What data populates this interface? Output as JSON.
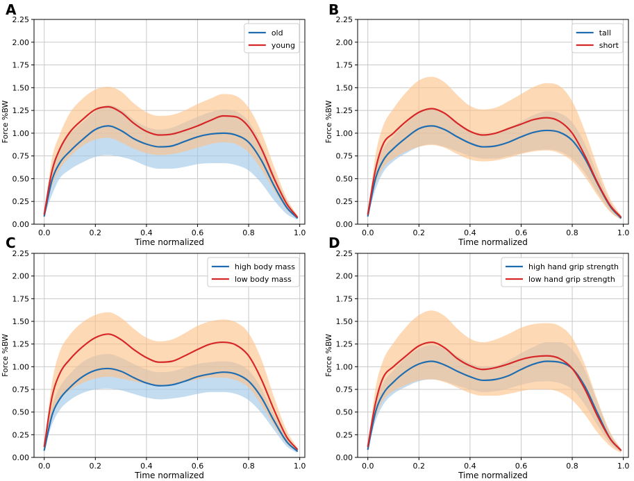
{
  "figure": {
    "panels": [
      "A",
      "B",
      "C",
      "D"
    ]
  },
  "colors": {
    "blue_line": "#1f6db0",
    "red_line": "#d62728",
    "blue_band": "#9fc6e7",
    "orange_band": "#fdbf86",
    "grid": "#c8c8c8"
  },
  "chart_data": [
    {
      "panel": "A",
      "type": "line",
      "title": "",
      "xlabel": "Time normalized",
      "ylabel": "Force %BW",
      "xlim": [
        -0.04,
        1.02
      ],
      "ylim": [
        0,
        2.25
      ],
      "xticks": [
        0.0,
        0.2,
        0.4,
        0.6,
        0.8,
        1.0
      ],
      "xtick_labels": [
        "0.0",
        "0.2",
        "0.4",
        "0.6",
        "0.8",
        "1.0"
      ],
      "yticks": [
        0,
        0.25,
        0.5,
        0.75,
        1.0,
        1.25,
        1.5,
        1.75,
        2.0,
        2.25
      ],
      "ytick_labels": [
        "0.00",
        "0.25",
        "0.50",
        "0.75",
        "1.00",
        "1.25",
        "1.50",
        "1.75",
        "2.00",
        "2.25"
      ],
      "grid": true,
      "legend_position": "top-right",
      "x": [
        0.0,
        0.03,
        0.06,
        0.1,
        0.15,
        0.2,
        0.25,
        0.3,
        0.35,
        0.4,
        0.45,
        0.5,
        0.55,
        0.6,
        0.65,
        0.7,
        0.75,
        0.8,
        0.85,
        0.9,
        0.95,
        0.99
      ],
      "series": [
        {
          "name": "old",
          "color": "blue",
          "values": [
            0.09,
            0.48,
            0.67,
            0.8,
            0.93,
            1.04,
            1.08,
            1.03,
            0.94,
            0.88,
            0.85,
            0.86,
            0.91,
            0.96,
            0.99,
            1.0,
            0.98,
            0.9,
            0.7,
            0.42,
            0.18,
            0.07
          ],
          "lower": [
            0.09,
            0.32,
            0.5,
            0.6,
            0.68,
            0.74,
            0.76,
            0.74,
            0.7,
            0.64,
            0.61,
            0.61,
            0.63,
            0.66,
            0.67,
            0.67,
            0.65,
            0.59,
            0.45,
            0.26,
            0.11,
            0.05
          ],
          "upper": [
            0.09,
            0.62,
            0.83,
            0.99,
            1.12,
            1.24,
            1.31,
            1.26,
            1.15,
            1.07,
            1.04,
            1.06,
            1.12,
            1.18,
            1.23,
            1.26,
            1.24,
            1.13,
            0.88,
            0.55,
            0.26,
            0.09
          ]
        },
        {
          "name": "young",
          "color": "red",
          "values": [
            0.11,
            0.58,
            0.82,
            1.01,
            1.15,
            1.26,
            1.29,
            1.23,
            1.11,
            1.02,
            0.98,
            0.99,
            1.03,
            1.08,
            1.14,
            1.19,
            1.18,
            1.07,
            0.83,
            0.5,
            0.22,
            0.08
          ],
          "lower": [
            0.11,
            0.42,
            0.6,
            0.74,
            0.86,
            0.93,
            0.95,
            0.9,
            0.83,
            0.78,
            0.76,
            0.77,
            0.8,
            0.84,
            0.88,
            0.9,
            0.88,
            0.79,
            0.6,
            0.37,
            0.16,
            0.06
          ],
          "upper": [
            0.11,
            0.72,
            0.98,
            1.22,
            1.38,
            1.48,
            1.51,
            1.46,
            1.33,
            1.23,
            1.19,
            1.2,
            1.25,
            1.32,
            1.38,
            1.43,
            1.41,
            1.28,
            1.01,
            0.63,
            0.28,
            0.1
          ]
        }
      ]
    },
    {
      "panel": "B",
      "type": "line",
      "title": "",
      "xlabel": "Time normalized",
      "ylabel": "Force %BW",
      "xlim": [
        -0.04,
        1.02
      ],
      "ylim": [
        0,
        2.25
      ],
      "xticks": [
        0.0,
        0.2,
        0.4,
        0.6,
        0.8,
        1.0
      ],
      "xtick_labels": [
        "0.0",
        "0.2",
        "0.4",
        "0.6",
        "0.8",
        "1.0"
      ],
      "yticks": [
        0,
        0.25,
        0.5,
        0.75,
        1.0,
        1.25,
        1.5,
        1.75,
        2.0,
        2.25
      ],
      "ytick_labels": [
        "0.00",
        "0.25",
        "0.50",
        "0.75",
        "1.00",
        "1.25",
        "1.50",
        "1.75",
        "2.00",
        "2.25"
      ],
      "grid": true,
      "legend_position": "top-right",
      "x": [
        0.0,
        0.03,
        0.06,
        0.1,
        0.15,
        0.2,
        0.25,
        0.3,
        0.35,
        0.4,
        0.45,
        0.5,
        0.55,
        0.6,
        0.65,
        0.7,
        0.75,
        0.8,
        0.85,
        0.9,
        0.95,
        0.99
      ],
      "series": [
        {
          "name": "tall",
          "color": "blue",
          "values": [
            0.09,
            0.5,
            0.7,
            0.83,
            0.95,
            1.05,
            1.08,
            1.04,
            0.96,
            0.89,
            0.85,
            0.86,
            0.9,
            0.96,
            1.01,
            1.03,
            1.01,
            0.92,
            0.72,
            0.44,
            0.19,
            0.07
          ],
          "lower": [
            0.09,
            0.38,
            0.57,
            0.69,
            0.78,
            0.85,
            0.88,
            0.85,
            0.8,
            0.75,
            0.72,
            0.72,
            0.75,
            0.78,
            0.81,
            0.82,
            0.8,
            0.72,
            0.56,
            0.34,
            0.14,
            0.05
          ],
          "upper": [
            0.09,
            0.62,
            0.83,
            0.97,
            1.11,
            1.23,
            1.27,
            1.22,
            1.12,
            1.03,
            0.98,
            0.99,
            1.05,
            1.13,
            1.2,
            1.24,
            1.22,
            1.12,
            0.88,
            0.54,
            0.24,
            0.09
          ]
        },
        {
          "name": "short",
          "color": "red",
          "values": [
            0.11,
            0.6,
            0.88,
            1.0,
            1.13,
            1.23,
            1.27,
            1.22,
            1.11,
            1.02,
            0.98,
            1.0,
            1.05,
            1.1,
            1.15,
            1.17,
            1.13,
            1.0,
            0.75,
            0.45,
            0.2,
            0.08
          ],
          "lower": [
            0.11,
            0.44,
            0.62,
            0.72,
            0.8,
            0.85,
            0.87,
            0.84,
            0.77,
            0.71,
            0.69,
            0.7,
            0.73,
            0.77,
            0.8,
            0.81,
            0.78,
            0.69,
            0.52,
            0.31,
            0.13,
            0.05
          ],
          "upper": [
            0.11,
            0.76,
            1.08,
            1.27,
            1.45,
            1.58,
            1.62,
            1.56,
            1.42,
            1.3,
            1.26,
            1.28,
            1.35,
            1.43,
            1.51,
            1.55,
            1.52,
            1.35,
            1.02,
            0.62,
            0.27,
            0.1
          ]
        }
      ]
    },
    {
      "panel": "C",
      "type": "line",
      "title": "",
      "xlabel": "Time normalized",
      "ylabel": "Force %BW",
      "xlim": [
        -0.04,
        1.02
      ],
      "ylim": [
        0,
        2.25
      ],
      "xticks": [
        0.0,
        0.2,
        0.4,
        0.6,
        0.8,
        1.0
      ],
      "xtick_labels": [
        "0.0",
        "0.2",
        "0.4",
        "0.6",
        "0.8",
        "1.0"
      ],
      "yticks": [
        0,
        0.25,
        0.5,
        0.75,
        1.0,
        1.25,
        1.5,
        1.75,
        2.0,
        2.25
      ],
      "ytick_labels": [
        "0.00",
        "0.25",
        "0.50",
        "0.75",
        "1.00",
        "1.25",
        "1.50",
        "1.75",
        "2.00",
        "2.25"
      ],
      "grid": true,
      "legend_position": "top-right",
      "x": [
        0.0,
        0.03,
        0.06,
        0.1,
        0.15,
        0.2,
        0.25,
        0.3,
        0.35,
        0.4,
        0.45,
        0.5,
        0.55,
        0.6,
        0.65,
        0.7,
        0.75,
        0.8,
        0.85,
        0.9,
        0.95,
        0.99
      ],
      "series": [
        {
          "name": "high body mass",
          "color": "blue",
          "values": [
            0.08,
            0.46,
            0.64,
            0.77,
            0.89,
            0.96,
            0.98,
            0.95,
            0.88,
            0.82,
            0.79,
            0.8,
            0.84,
            0.89,
            0.92,
            0.94,
            0.92,
            0.84,
            0.66,
            0.4,
            0.17,
            0.07
          ],
          "lower": [
            0.08,
            0.36,
            0.52,
            0.63,
            0.71,
            0.75,
            0.76,
            0.74,
            0.7,
            0.66,
            0.64,
            0.65,
            0.67,
            0.7,
            0.72,
            0.72,
            0.7,
            0.63,
            0.49,
            0.3,
            0.12,
            0.05
          ],
          "upper": [
            0.08,
            0.56,
            0.77,
            0.92,
            1.05,
            1.12,
            1.14,
            1.1,
            1.03,
            0.97,
            0.94,
            0.95,
            0.99,
            1.03,
            1.05,
            1.06,
            1.04,
            0.96,
            0.76,
            0.47,
            0.21,
            0.08
          ]
        },
        {
          "name": "low body mass",
          "color": "red",
          "values": [
            0.12,
            0.66,
            0.92,
            1.08,
            1.22,
            1.32,
            1.36,
            1.3,
            1.19,
            1.1,
            1.05,
            1.06,
            1.12,
            1.19,
            1.25,
            1.27,
            1.24,
            1.12,
            0.86,
            0.52,
            0.22,
            0.09
          ],
          "lower": [
            0.12,
            0.48,
            0.63,
            0.74,
            0.82,
            0.87,
            0.89,
            0.87,
            0.84,
            0.81,
            0.79,
            0.8,
            0.83,
            0.86,
            0.88,
            0.88,
            0.85,
            0.77,
            0.58,
            0.35,
            0.15,
            0.06
          ],
          "upper": [
            0.12,
            0.82,
            1.16,
            1.35,
            1.49,
            1.57,
            1.6,
            1.54,
            1.42,
            1.32,
            1.28,
            1.3,
            1.37,
            1.45,
            1.5,
            1.52,
            1.49,
            1.37,
            1.08,
            0.66,
            0.29,
            0.11
          ]
        }
      ]
    },
    {
      "panel": "D",
      "type": "line",
      "title": "",
      "xlabel": "Time normalized",
      "ylabel": "Force %BW",
      "xlim": [
        -0.04,
        1.02
      ],
      "ylim": [
        0,
        2.25
      ],
      "xticks": [
        0.0,
        0.2,
        0.4,
        0.6,
        0.8,
        1.0
      ],
      "xtick_labels": [
        "0.0",
        "0.2",
        "0.4",
        "0.6",
        "0.8",
        "1.0"
      ],
      "yticks": [
        0,
        0.25,
        0.5,
        0.75,
        1.0,
        1.25,
        1.5,
        1.75,
        2.0,
        2.25
      ],
      "ytick_labels": [
        "0.00",
        "0.25",
        "0.50",
        "0.75",
        "1.00",
        "1.25",
        "1.50",
        "1.75",
        "2.00",
        "2.25"
      ],
      "grid": true,
      "legend_position": "top-right",
      "x": [
        0.0,
        0.03,
        0.06,
        0.1,
        0.15,
        0.2,
        0.25,
        0.3,
        0.35,
        0.4,
        0.45,
        0.5,
        0.55,
        0.6,
        0.65,
        0.7,
        0.75,
        0.8,
        0.85,
        0.9,
        0.95,
        0.99
      ],
      "series": [
        {
          "name": "high hand grip strength",
          "color": "blue",
          "values": [
            0.09,
            0.5,
            0.7,
            0.83,
            0.95,
            1.03,
            1.06,
            1.02,
            0.95,
            0.89,
            0.85,
            0.86,
            0.9,
            0.97,
            1.03,
            1.06,
            1.05,
            0.98,
            0.78,
            0.48,
            0.2,
            0.08
          ],
          "lower": [
            0.09,
            0.4,
            0.58,
            0.7,
            0.78,
            0.84,
            0.86,
            0.84,
            0.79,
            0.75,
            0.72,
            0.73,
            0.76,
            0.8,
            0.83,
            0.84,
            0.82,
            0.75,
            0.58,
            0.35,
            0.15,
            0.06
          ],
          "upper": [
            0.09,
            0.6,
            0.82,
            0.96,
            1.1,
            1.2,
            1.24,
            1.2,
            1.12,
            1.04,
            1.0,
            1.01,
            1.07,
            1.15,
            1.22,
            1.27,
            1.27,
            1.19,
            0.96,
            0.6,
            0.26,
            0.09
          ]
        },
        {
          "name": "low hand grip strength",
          "color": "red",
          "values": [
            0.12,
            0.6,
            0.88,
            1.0,
            1.12,
            1.23,
            1.27,
            1.21,
            1.09,
            1.01,
            0.97,
            0.99,
            1.03,
            1.08,
            1.11,
            1.12,
            1.09,
            0.98,
            0.75,
            0.45,
            0.2,
            0.08
          ],
          "lower": [
            0.12,
            0.44,
            0.63,
            0.73,
            0.8,
            0.85,
            0.86,
            0.83,
            0.77,
            0.71,
            0.68,
            0.68,
            0.7,
            0.73,
            0.75,
            0.75,
            0.72,
            0.63,
            0.47,
            0.27,
            0.12,
            0.05
          ],
          "upper": [
            0.12,
            0.76,
            1.07,
            1.26,
            1.44,
            1.57,
            1.62,
            1.56,
            1.42,
            1.31,
            1.27,
            1.3,
            1.36,
            1.43,
            1.47,
            1.48,
            1.45,
            1.32,
            1.02,
            0.62,
            0.27,
            0.1
          ]
        }
      ]
    }
  ]
}
